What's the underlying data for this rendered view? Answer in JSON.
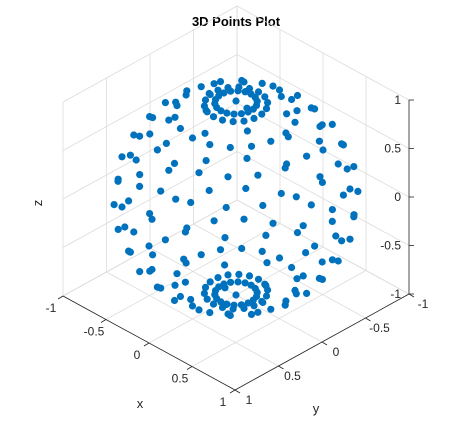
{
  "chart_data": {
    "type": "scatter3d",
    "title": "3D Points Plot",
    "xlabel": "x",
    "ylabel": "y",
    "zlabel": "z",
    "xlim": [
      -1,
      1
    ],
    "ylim": [
      -1,
      1
    ],
    "zlim": [
      -1,
      1
    ],
    "x_ticks": [
      "-1",
      "-0.5",
      "0",
      "0.5",
      "1"
    ],
    "y_ticks": [
      "-1",
      "-0.5",
      "0",
      "0.5",
      "1"
    ],
    "z_ticks": [
      "-1",
      "-0.5",
      "0",
      "0.5",
      "1"
    ],
    "grid": true,
    "view": "3d",
    "marker_color": "#0072BD",
    "marker": "filled-circle",
    "series": [
      {
        "shape": "unit-sphere",
        "generator": {
          "latitude_rings_deg": [
            -90,
            -75,
            -60,
            -45,
            -30,
            -15,
            0,
            15,
            30,
            45,
            60,
            75,
            90
          ],
          "longitude_step_deg": 20
        }
      }
    ]
  }
}
